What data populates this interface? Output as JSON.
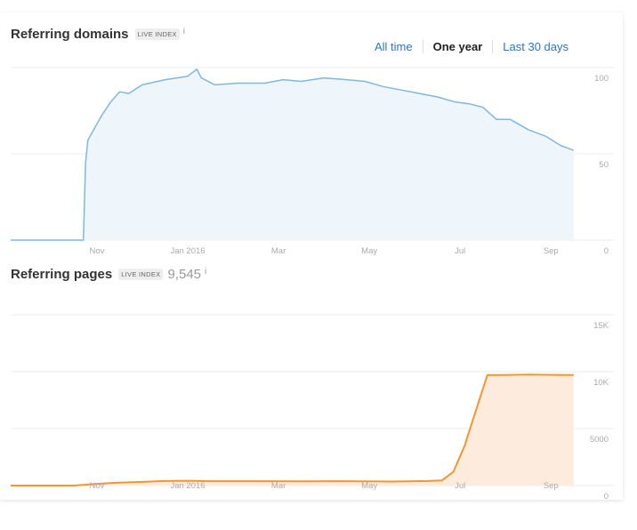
{
  "domains": {
    "title": "Referring domains",
    "badge": "LIVE INDEX",
    "info": "i",
    "range_options": {
      "all_time": "All time",
      "one_year": "One year",
      "last_30_days": "Last 30 days"
    },
    "selected_range": "One year"
  },
  "pages": {
    "title": "Referring pages",
    "badge": "LIVE INDEX",
    "count": "9,545",
    "info": "i"
  },
  "colors": {
    "domains_line": "#7fb8e2",
    "domains_fill": "#eef5fb",
    "pages_line": "#f5962d",
    "pages_fill": "#fdecde",
    "grid": "#eeeeee",
    "tick": "#aaaaaa"
  },
  "chart_data": [
    {
      "type": "area",
      "title": "Referring domains",
      "x_tick_labels": [
        "Nov",
        "Jan 2016",
        "Mar",
        "May",
        "Jul",
        "Sep"
      ],
      "x_tick_positions": [
        0.5,
        2.5,
        4.5,
        6.5,
        8.5,
        10.5
      ],
      "x_range": [
        -1.4,
        11.2
      ],
      "y_tick_labels": [
        "100",
        "50",
        "0"
      ],
      "y_ticks": [
        100,
        50,
        0
      ],
      "ylim": [
        0,
        100
      ],
      "grid": true,
      "x_months_since_sep_2015": [
        -1.4,
        0.2,
        0.25,
        0.3,
        0.45,
        0.6,
        0.8,
        1.0,
        1.2,
        1.5,
        2.0,
        2.5,
        2.7,
        2.8,
        3.1,
        3.6,
        4.2,
        4.6,
        5.0,
        5.5,
        6.0,
        6.4,
        6.8,
        7.2,
        7.6,
        8.0,
        8.4,
        8.7,
        9.0,
        9.3,
        9.6,
        10.0,
        10.4,
        10.7,
        11.0
      ],
      "values": [
        0,
        0,
        45,
        58,
        65,
        72,
        80,
        86,
        85,
        90,
        93,
        95,
        99,
        94,
        90,
        91,
        91,
        93,
        92,
        94,
        93,
        92,
        89,
        87,
        85,
        83,
        80,
        79,
        77,
        70,
        70,
        64,
        60,
        55,
        52
      ]
    },
    {
      "type": "area",
      "title": "Referring pages",
      "x_tick_labels": [
        "Nov",
        "Jan 2016",
        "Mar",
        "May",
        "Jul",
        "Sep"
      ],
      "x_tick_positions": [
        0.5,
        2.5,
        4.5,
        6.5,
        8.5,
        10.5
      ],
      "x_range": [
        -1.4,
        11.2
      ],
      "y_tick_labels": [
        "15K",
        "10K",
        "5000",
        "0"
      ],
      "y_ticks": [
        15000,
        10000,
        5000,
        0
      ],
      "ylim": [
        0,
        15000
      ],
      "grid": true,
      "x_months_since_sep_2015": [
        -1.4,
        0.0,
        0.5,
        1.0,
        1.5,
        2.0,
        2.5,
        3.0,
        4.0,
        5.0,
        6.0,
        7.0,
        7.8,
        8.1,
        8.35,
        8.6,
        8.8,
        9.1,
        9.4,
        10.0,
        11.0
      ],
      "values": [
        0,
        0,
        150,
        260,
        320,
        400,
        420,
        380,
        380,
        370,
        380,
        350,
        400,
        450,
        1200,
        3500,
        6000,
        9700,
        9700,
        9750,
        9700
      ]
    }
  ]
}
